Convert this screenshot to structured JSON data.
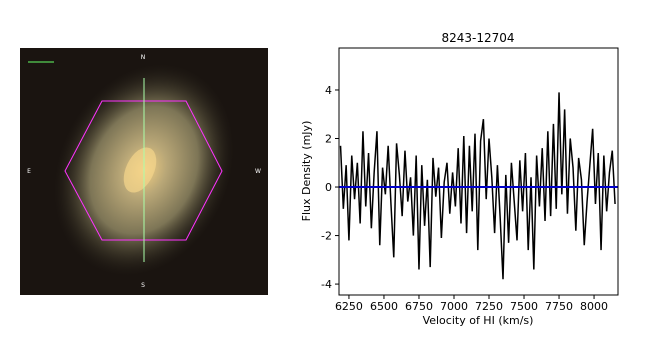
{
  "image": {
    "labels": {
      "north": "N",
      "south": "S",
      "east": "E",
      "west": "W"
    }
  },
  "chart_data": {
    "type": "line",
    "title": "8243-12704",
    "xlabel": "Velocity of HI (km/s)",
    "ylabel": "Flux Density (mJy)",
    "xlim": [
      6179,
      8171
    ],
    "ylim": [
      -4.45,
      5.73
    ],
    "xticks": [
      6250,
      6500,
      6750,
      7000,
      7250,
      7500,
      7750,
      8000
    ],
    "yticks": [
      -4,
      -2,
      0,
      2,
      4
    ],
    "series": [
      {
        "color": "#000000",
        "x": [
          6190,
          6210,
          6230,
          6250,
          6270,
          6290,
          6310,
          6330,
          6350,
          6370,
          6390,
          6410,
          6430,
          6450,
          6470,
          6490,
          6510,
          6530,
          6550,
          6570,
          6590,
          6610,
          6630,
          6650,
          6670,
          6690,
          6710,
          6730,
          6750,
          6770,
          6790,
          6810,
          6830,
          6850,
          6870,
          6890,
          6910,
          6930,
          6950,
          6970,
          6990,
          7010,
          7030,
          7050,
          7070,
          7090,
          7110,
          7130,
          7150,
          7170,
          7190,
          7210,
          7230,
          7250,
          7270,
          7290,
          7310,
          7330,
          7350,
          7370,
          7390,
          7410,
          7430,
          7450,
          7470,
          7490,
          7510,
          7530,
          7550,
          7570,
          7590,
          7610,
          7630,
          7650,
          7670,
          7690,
          7710,
          7730,
          7750,
          7770,
          7790,
          7810,
          7830,
          7850,
          7870,
          7890,
          7910,
          7930,
          7950,
          7970,
          7990,
          8010,
          8030,
          8050,
          8070,
          8090,
          8110,
          8130,
          8150
        ],
        "values": [
          1.7,
          -0.9,
          0.9,
          -2.2,
          1.3,
          -0.5,
          1.0,
          -1.5,
          2.3,
          -0.8,
          1.4,
          -1.7,
          0.6,
          2.3,
          -2.4,
          0.8,
          -0.3,
          1.7,
          -0.7,
          -2.9,
          1.8,
          0.5,
          -1.2,
          1.5,
          -0.6,
          0.4,
          -2.0,
          1.3,
          -3.4,
          0.9,
          -1.6,
          0.3,
          -3.3,
          1.2,
          -0.4,
          0.8,
          -2.1,
          0.2,
          1.0,
          -1.1,
          0.6,
          -0.8,
          1.6,
          -1.5,
          2.1,
          -1.9,
          1.7,
          -1.0,
          2.2,
          -2.6,
          1.9,
          2.8,
          -0.5,
          2.0,
          0.4,
          -1.9,
          0.9,
          -1.3,
          -3.8,
          0.5,
          -2.3,
          1.0,
          -0.6,
          -2.2,
          1.1,
          -1.0,
          1.4,
          -2.6,
          0.4,
          -3.4,
          1.3,
          -0.8,
          1.6,
          -1.4,
          2.3,
          -1.2,
          2.6,
          -0.9,
          3.9,
          -0.3,
          3.2,
          -1.1,
          2.0,
          0.8,
          -1.8,
          1.2,
          0.3,
          -2.4,
          -0.6,
          0.9,
          2.4,
          -0.7,
          1.4,
          -2.6,
          1.3,
          -1.0,
          0.6,
          1.5,
          -0.7
        ]
      },
      {
        "color": "#0000cc",
        "x": [
          6179,
          8171
        ],
        "values": [
          0,
          0
        ]
      }
    ]
  }
}
